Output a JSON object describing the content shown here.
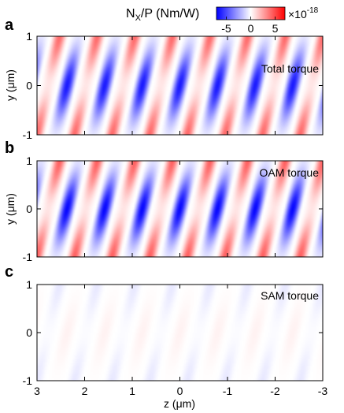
{
  "colorbar": {
    "label_main": "N",
    "label_sub": "X",
    "label_rest": "/P (Nm/W)",
    "ticks": [
      "-5",
      "0",
      "5"
    ],
    "tick_values": [
      -5,
      0,
      5
    ],
    "range": [
      -7,
      7
    ],
    "scale_base": "×10",
    "scale_exp": "-18",
    "colors": {
      "negative": "#0000ff",
      "zero": "#ffffff",
      "positive": "#ff0000"
    }
  },
  "chart_data": [
    {
      "type": "heatmap",
      "panel_letter": "a",
      "title": "Total torque",
      "xlabel": "",
      "ylabel_main": "y (",
      "ylabel_unit": "μm",
      "ylabel_end": ")",
      "xlim": [
        3,
        -3
      ],
      "ylim": [
        -1,
        1
      ],
      "yticks": [
        "-1",
        "0",
        "1"
      ],
      "ytick_values": [
        -1,
        0,
        1
      ],
      "field": {
        "wavelength": 0.79,
        "tilt": 0.24,
        "lobe_peak": -6.3,
        "edge_peak": 4.6
      }
    },
    {
      "type": "heatmap",
      "panel_letter": "b",
      "title": "OAM torque",
      "xlabel": "",
      "ylabel_main": "y (",
      "ylabel_unit": "μm",
      "ylabel_end": ")",
      "xlim": [
        3,
        -3
      ],
      "ylim": [
        -1,
        1
      ],
      "yticks": [
        "-1",
        "0",
        "1"
      ],
      "ytick_values": [
        -1,
        0,
        1
      ],
      "field": {
        "wavelength": 0.79,
        "tilt": 0.24,
        "lobe_peak": -6.8,
        "edge_peak": 4.9
      }
    },
    {
      "type": "heatmap",
      "panel_letter": "c",
      "title": "SAM torque",
      "xlabel_main": "z (",
      "xlabel_unit": "μm",
      "xlabel_end": ")",
      "xlim": [
        3,
        -3
      ],
      "ylim": [
        -1,
        1
      ],
      "xticks": [
        "3",
        "2",
        "1",
        "0",
        "-1",
        "-2",
        "-3"
      ],
      "xtick_values": [
        3,
        2,
        1,
        0,
        -1,
        -2,
        -3
      ],
      "yticks": [
        "-1",
        "0",
        "1"
      ],
      "ytick_values": [
        -1,
        0,
        1
      ],
      "field": {
        "wavelength": 0.79,
        "tilt": 0.24,
        "lobe_peak": 0.35,
        "edge_peak": -0.7
      }
    }
  ]
}
